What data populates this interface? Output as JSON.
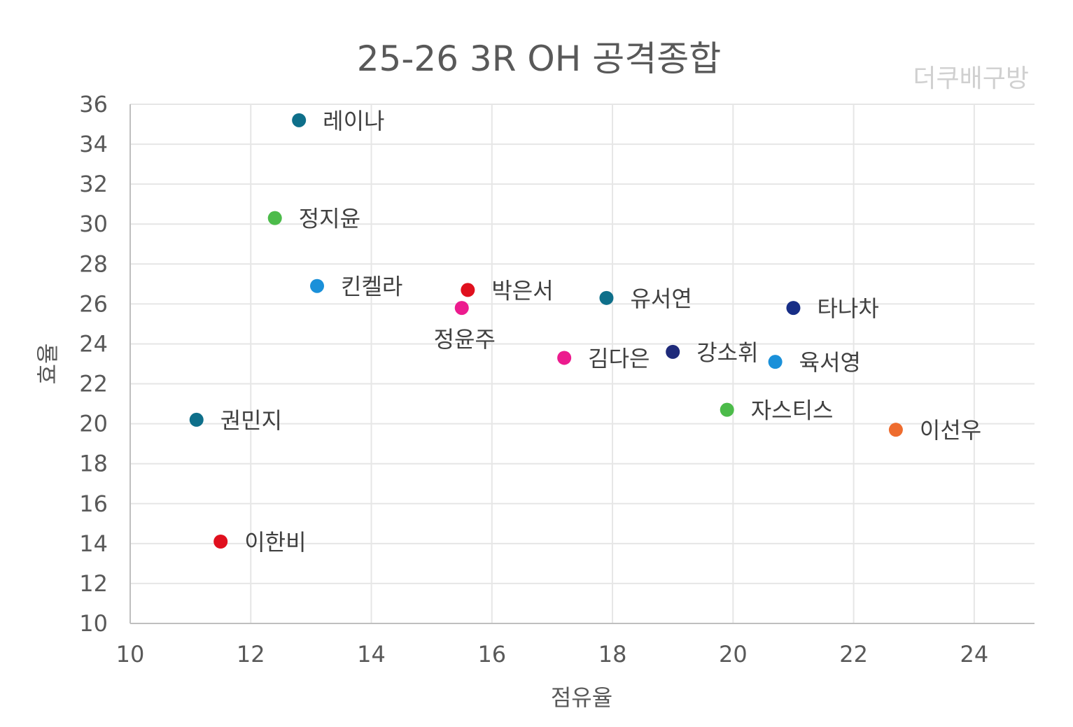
{
  "chart_data": {
    "type": "scatter",
    "title": "25-26 3R OH 공격종합",
    "watermark": "더쿠배구방",
    "xlabel": "점유율",
    "ylabel": "효율",
    "xlim": [
      10,
      25
    ],
    "ylim": [
      10,
      36
    ],
    "xticks": [
      10,
      12,
      14,
      16,
      18,
      20,
      22,
      24
    ],
    "yticks": [
      10,
      12,
      14,
      16,
      18,
      20,
      22,
      24,
      26,
      28,
      30,
      32,
      34,
      36
    ],
    "grid": true,
    "points": [
      {
        "label": "레이나",
        "x": 12.8,
        "y": 35.2,
        "color": "#0e6f8a",
        "label_pos": "right"
      },
      {
        "label": "정지윤",
        "x": 12.4,
        "y": 30.3,
        "color": "#4cbb4a",
        "label_pos": "right"
      },
      {
        "label": "킨켈라",
        "x": 13.1,
        "y": 26.9,
        "color": "#1a90d9",
        "label_pos": "right"
      },
      {
        "label": "박은서",
        "x": 15.6,
        "y": 26.7,
        "color": "#e0101e",
        "label_pos": "right"
      },
      {
        "label": "정윤주",
        "x": 15.5,
        "y": 25.8,
        "color": "#ec1b8e",
        "label_pos": "below"
      },
      {
        "label": "유서연",
        "x": 17.9,
        "y": 26.3,
        "color": "#0e6f8a",
        "label_pos": "right"
      },
      {
        "label": "타나차",
        "x": 21.0,
        "y": 25.8,
        "color": "#172e86",
        "label_pos": "right"
      },
      {
        "label": "김다은",
        "x": 17.2,
        "y": 23.3,
        "color": "#ec1b8e",
        "label_pos": "right"
      },
      {
        "label": "강소휘",
        "x": 19.0,
        "y": 23.6,
        "color": "#1e2a7a",
        "label_pos": "right"
      },
      {
        "label": "육서영",
        "x": 20.7,
        "y": 23.1,
        "color": "#1a90d9",
        "label_pos": "right"
      },
      {
        "label": "자스티스",
        "x": 19.9,
        "y": 20.7,
        "color": "#4cbb4a",
        "label_pos": "right"
      },
      {
        "label": "이선우",
        "x": 22.7,
        "y": 19.7,
        "color": "#ee6c2e",
        "label_pos": "right"
      },
      {
        "label": "권민지",
        "x": 11.1,
        "y": 20.2,
        "color": "#0e6f8a",
        "label_pos": "right"
      },
      {
        "label": "이한비",
        "x": 11.5,
        "y": 14.1,
        "color": "#e0101e",
        "label_pos": "right"
      }
    ]
  }
}
